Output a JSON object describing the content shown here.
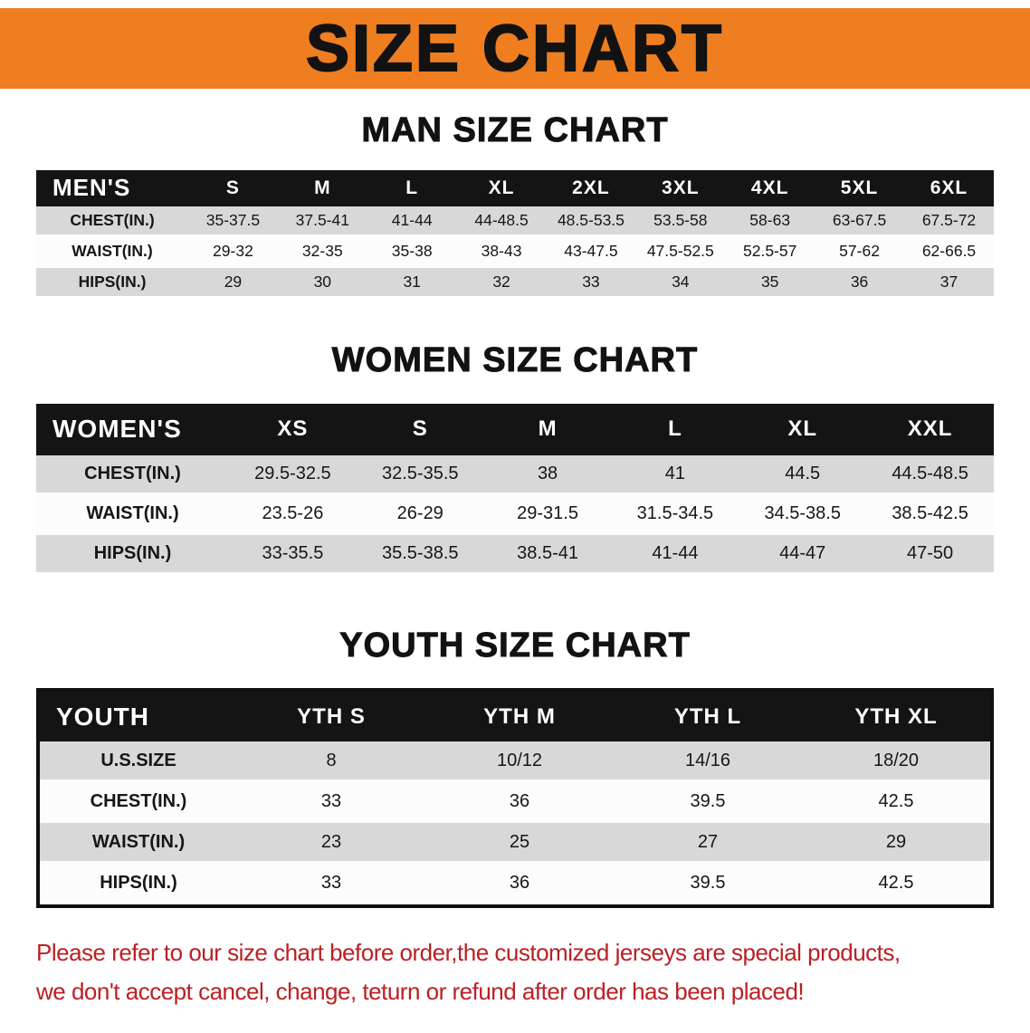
{
  "banner": {
    "title": "SIZE CHART",
    "bg_color": "#EE7E20"
  },
  "men": {
    "heading": "MAN SIZE CHART",
    "table": {
      "header_label": "MEN'S",
      "columns": [
        "S",
        "M",
        "L",
        "XL",
        "2XL",
        "3XL",
        "4XL",
        "5XL",
        "6XL"
      ],
      "rows": [
        {
          "label": "CHEST(IN.)",
          "values": [
            "35-37.5",
            "37.5-41",
            "41-44",
            "44-48.5",
            "48.5-53.5",
            "53.5-58",
            "58-63",
            "63-67.5",
            "67.5-72"
          ]
        },
        {
          "label": "WAIST(IN.)",
          "values": [
            "29-32",
            "32-35",
            "35-38",
            "38-43",
            "43-47.5",
            "47.5-52.5",
            "52.5-57",
            "57-62",
            "62-66.5"
          ]
        },
        {
          "label": "HIPS(IN.)",
          "values": [
            "29",
            "30",
            "31",
            "32",
            "33",
            "34",
            "35",
            "36",
            "37"
          ]
        }
      ]
    }
  },
  "women": {
    "heading": "WOMEN SIZE CHART",
    "table": {
      "header_label": "WOMEN'S",
      "columns": [
        "XS",
        "S",
        "M",
        "L",
        "XL",
        "XXL"
      ],
      "rows": [
        {
          "label": "CHEST(IN.)",
          "values": [
            "29.5-32.5",
            "32.5-35.5",
            "38",
            "41",
            "44.5",
            "44.5-48.5"
          ]
        },
        {
          "label": "WAIST(IN.)",
          "values": [
            "23.5-26",
            "26-29",
            "29-31.5",
            "31.5-34.5",
            "34.5-38.5",
            "38.5-42.5"
          ]
        },
        {
          "label": "HIPS(IN.)",
          "values": [
            "33-35.5",
            "35.5-38.5",
            "38.5-41",
            "41-44",
            "44-47",
            "47-50"
          ]
        }
      ]
    }
  },
  "youth": {
    "heading": "YOUTH SIZE CHART",
    "table": {
      "header_label": "YOUTH",
      "columns": [
        "YTH S",
        "YTH M",
        "YTH L",
        "YTH XL"
      ],
      "rows": [
        {
          "label": "U.S.SIZE",
          "values": [
            "8",
            "10/12",
            "14/16",
            "18/20"
          ]
        },
        {
          "label": "CHEST(IN.)",
          "values": [
            "33",
            "36",
            "39.5",
            "42.5"
          ]
        },
        {
          "label": "WAIST(IN.)",
          "values": [
            "23",
            "25",
            "27",
            "29"
          ]
        },
        {
          "label": "HIPS(IN.)",
          "values": [
            "33",
            "36",
            "39.5",
            "42.5"
          ]
        }
      ]
    }
  },
  "footer": {
    "line1": "Please refer to our size chart before order,the customized jerseys are special products,",
    "line2": "we don't accept cancel, change, teturn or refund after order has been placed!",
    "text_color": "#BB2025"
  }
}
